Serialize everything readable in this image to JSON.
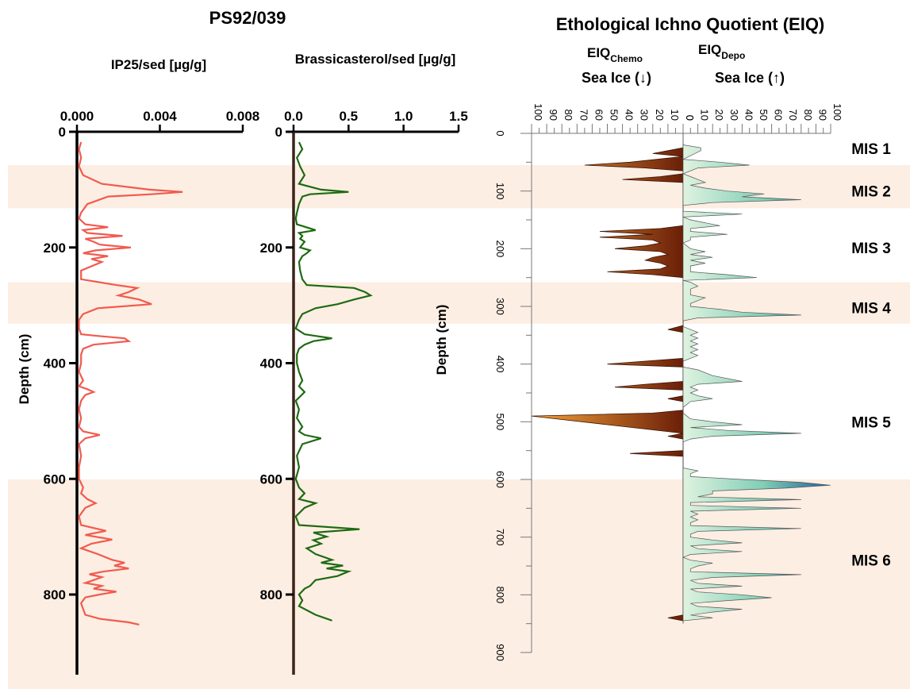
{
  "figure": {
    "core_title": "PS92/039",
    "eiq_title": "Ethological Ichno Quotient (EIQ)",
    "depth_label": "Depth (cm)",
    "colors": {
      "band": "#fdeee3",
      "ip25": "#f25a4e",
      "brassicasterol": "#1e6b12",
      "chemo_light": "#f6a23a",
      "chemo_dark": "#6a1f08",
      "depo_light": "#dff3e0",
      "depo_dark": "#1f5d9c"
    }
  },
  "mis_bands": [
    {
      "label": "MIS 1",
      "top": 0,
      "bottom": 55,
      "shaded": false
    },
    {
      "label": "MIS 2",
      "top": 55,
      "bottom": 130,
      "shaded": true
    },
    {
      "label": "MIS 3",
      "top": 130,
      "bottom": 258,
      "shaded": false
    },
    {
      "label": "MIS 4",
      "top": 258,
      "bottom": 330,
      "shaded": true
    },
    {
      "label": "MIS 5",
      "top": 330,
      "bottom": 600,
      "shaded": false
    },
    {
      "label": "MIS 6",
      "top": 600,
      "bottom": 900,
      "shaded": true
    }
  ],
  "chart_data": [
    {
      "type": "line",
      "title": "IP25/sed [µg/g]",
      "xlim": [
        0,
        0.008
      ],
      "xticks": [
        "0.000",
        "0.004",
        "0.008"
      ],
      "xtick_values": [
        0,
        0.004,
        0.008
      ],
      "ylim": [
        0,
        855
      ],
      "yticks": [
        "0",
        "200",
        "400",
        "600",
        "800"
      ],
      "ylabel": "Depth (cm)",
      "depth": [
        18,
        30,
        45,
        60,
        75,
        90,
        100,
        104,
        108,
        112,
        125,
        140,
        150,
        160,
        165,
        170,
        175,
        180,
        185,
        190,
        195,
        200,
        205,
        210,
        215,
        220,
        225,
        240,
        255,
        265,
        270,
        277,
        283,
        290,
        298,
        305,
        315,
        325,
        340,
        350,
        353,
        357,
        362,
        368,
        375,
        385,
        400,
        415,
        430,
        440,
        445,
        450,
        455,
        465,
        480,
        495,
        510,
        518,
        524,
        530,
        540,
        560,
        580,
        600,
        615,
        625,
        635,
        642,
        650,
        665,
        680,
        690,
        697,
        705,
        712,
        720,
        730,
        740,
        745,
        750,
        755,
        760,
        765,
        770,
        775,
        780,
        785,
        790,
        795,
        800,
        805,
        815,
        825,
        835,
        842,
        848,
        852
      ],
      "values": [
        0.0002,
        0.0001,
        0.0002,
        0.0001,
        0.0003,
        0.0012,
        0.0035,
        0.0051,
        0.0036,
        0.0015,
        0.0005,
        0.0002,
        0.0001,
        0.0004,
        0.0015,
        0.0003,
        0.0005,
        0.0022,
        0.0004,
        0.0008,
        0.0011,
        0.0026,
        0.0009,
        0.0003,
        0.0015,
        0.0007,
        0.0012,
        0.0002,
        0.0002,
        0.0019,
        0.0029,
        0.0025,
        0.002,
        0.003,
        0.0036,
        0.001,
        0.0003,
        0.0001,
        0.0001,
        0.0002,
        0.001,
        0.0023,
        0.0025,
        0.0008,
        0.0003,
        0.0002,
        0.0002,
        0.0001,
        0.0003,
        0.0001,
        0.0005,
        0.0008,
        0.0004,
        0.0002,
        0.0001,
        0.0002,
        0.0001,
        0.0003,
        0.0011,
        0.0004,
        0.0001,
        0.0002,
        0.0001,
        0.0001,
        0.0003,
        0.0002,
        0.0005,
        0.0009,
        0.0004,
        0.0001,
        0.0002,
        0.0014,
        0.0004,
        0.0017,
        0.0007,
        0.0002,
        0.001,
        0.0017,
        0.0023,
        0.0018,
        0.0025,
        0.0013,
        0.0006,
        0.0012,
        0.0008,
        0.0004,
        0.0012,
        0.0008,
        0.0019,
        0.0011,
        0.0004,
        0.0002,
        0.0003,
        0.0004,
        0.0011,
        0.0025,
        0.003
      ]
    },
    {
      "type": "line",
      "title": "Brassicasterol/sed [µg/g]",
      "xlim": [
        0,
        1.5
      ],
      "xticks": [
        "0.0",
        "0.5",
        "1.0",
        "1.5"
      ],
      "xtick_values": [
        0,
        0.5,
        1.0,
        1.5
      ],
      "ylim": [
        0,
        855
      ],
      "yticks": [
        "0",
        "200",
        "400",
        "600",
        "800"
      ],
      "depth": [
        18,
        30,
        45,
        60,
        75,
        90,
        100,
        104,
        108,
        112,
        125,
        140,
        150,
        160,
        170,
        175,
        180,
        185,
        190,
        195,
        200,
        205,
        210,
        215,
        225,
        240,
        255,
        265,
        270,
        277,
        283,
        290,
        298,
        305,
        315,
        325,
        340,
        350,
        353,
        357,
        362,
        368,
        375,
        385,
        400,
        415,
        430,
        440,
        450,
        465,
        480,
        495,
        510,
        518,
        524,
        530,
        540,
        560,
        580,
        600,
        615,
        625,
        635,
        642,
        650,
        665,
        680,
        687,
        693,
        700,
        706,
        712,
        720,
        730,
        740,
        745,
        750,
        755,
        760,
        768,
        775,
        785,
        790,
        800,
        810,
        820,
        835,
        845
      ],
      "values": [
        0.05,
        0.08,
        0.03,
        0.06,
        0.1,
        0.05,
        0.25,
        0.5,
        0.15,
        0.08,
        0.05,
        0.03,
        0.02,
        0.03,
        0.2,
        0.05,
        0.08,
        0.06,
        0.1,
        0.08,
        0.06,
        0.15,
        0.12,
        0.08,
        0.05,
        0.06,
        0.08,
        0.12,
        0.55,
        0.65,
        0.7,
        0.55,
        0.4,
        0.2,
        0.08,
        0.05,
        0.02,
        0.1,
        0.2,
        0.35,
        0.18,
        0.1,
        0.05,
        0.03,
        0.03,
        0.05,
        0.08,
        0.05,
        0.1,
        0.02,
        0.05,
        0.03,
        0.08,
        0.05,
        0.1,
        0.25,
        0.08,
        0.03,
        0.05,
        0.02,
        0.05,
        0.1,
        0.05,
        0.2,
        0.1,
        0.02,
        0.05,
        0.6,
        0.18,
        0.3,
        0.18,
        0.25,
        0.12,
        0.2,
        0.35,
        0.25,
        0.45,
        0.3,
        0.5,
        0.4,
        0.2,
        0.15,
        0.1,
        0.05,
        0.08,
        0.05,
        0.2,
        0.35
      ]
    },
    {
      "type": "area",
      "title": "EIQ",
      "sub_chemo": "Chemo",
      "sub_depo": "Depo",
      "sealabel_chemo": "Sea Ice (↓)",
      "sealabel_depo": "Sea Ice (↑)",
      "ylabel": "Depth (cm)",
      "ylim": [
        0,
        900
      ],
      "yticks": [
        "0",
        "100",
        "200",
        "300",
        "400",
        "500",
        "600",
        "700",
        "800",
        "900"
      ],
      "chemo_ticks": [
        "100",
        "90",
        "80",
        "70",
        "60",
        "50",
        "40",
        "30",
        "20",
        "10",
        "0"
      ],
      "depo_ticks": [
        "0",
        "10",
        "20",
        "30",
        "40",
        "50",
        "60",
        "70",
        "80",
        "90",
        "100"
      ],
      "chemo": {
        "depth": [
          25,
          30,
          35,
          40,
          50,
          55,
          60,
          65,
          70,
          75,
          80,
          85,
          160,
          165,
          170,
          175,
          180,
          185,
          190,
          195,
          200,
          205,
          210,
          215,
          220,
          225,
          230,
          235,
          240,
          245,
          250,
          333,
          340,
          345,
          390,
          395,
          400,
          405,
          430,
          435,
          440,
          445,
          455,
          460,
          465,
          480,
          485,
          490,
          520,
          525,
          530,
          550,
          555,
          560,
          835,
          840,
          845
        ],
        "values": [
          0,
          10,
          20,
          0,
          35,
          65,
          25,
          0,
          0,
          15,
          40,
          0,
          0,
          15,
          55,
          20,
          55,
          20,
          15,
          25,
          45,
          15,
          10,
          20,
          25,
          15,
          10,
          15,
          50,
          20,
          0,
          0,
          10,
          0,
          0,
          25,
          50,
          0,
          0,
          25,
          45,
          0,
          0,
          10,
          0,
          0,
          20,
          100,
          0,
          10,
          0,
          0,
          35,
          0,
          0,
          10,
          0
        ]
      },
      "depo": {
        "depth": [
          20,
          25,
          30,
          45,
          50,
          55,
          60,
          70,
          75,
          80,
          85,
          90,
          95,
          100,
          105,
          110,
          115,
          120,
          125,
          135,
          140,
          145,
          150,
          160,
          165,
          170,
          175,
          180,
          185,
          190,
          200,
          205,
          210,
          215,
          220,
          225,
          230,
          240,
          245,
          250,
          255,
          258,
          265,
          270,
          275,
          280,
          285,
          290,
          295,
          300,
          305,
          310,
          315,
          320,
          325,
          335,
          340,
          345,
          350,
          355,
          360,
          365,
          370,
          375,
          380,
          385,
          395,
          405,
          410,
          420,
          425,
          430,
          435,
          440,
          445,
          450,
          455,
          460,
          465,
          475,
          485,
          495,
          500,
          505,
          510,
          515,
          520,
          525,
          530,
          535,
          540,
          550,
          560,
          580,
          585,
          590,
          595,
          600,
          605,
          610,
          615,
          620,
          625,
          630,
          635,
          640,
          645,
          650,
          655,
          660,
          665,
          670,
          675,
          680,
          685,
          690,
          695,
          700,
          705,
          710,
          715,
          720,
          725,
          730,
          735,
          740,
          745,
          750,
          755,
          760,
          765,
          770,
          775,
          780,
          785,
          790,
          795,
          800,
          805,
          810,
          815,
          820,
          825,
          830,
          835,
          840,
          845
        ],
        "values": [
          0,
          12,
          12,
          0,
          25,
          45,
          10,
          0,
          5,
          10,
          15,
          5,
          15,
          30,
          55,
          40,
          80,
          20,
          0,
          0,
          40,
          0,
          5,
          25,
          5,
          5,
          30,
          5,
          5,
          0,
          5,
          15,
          5,
          20,
          5,
          15,
          5,
          5,
          30,
          50,
          0,
          5,
          10,
          5,
          5,
          5,
          15,
          10,
          5,
          5,
          25,
          40,
          80,
          10,
          0,
          0,
          5,
          10,
          5,
          10,
          5,
          10,
          5,
          10,
          5,
          10,
          0,
          0,
          10,
          20,
          30,
          40,
          10,
          5,
          10,
          5,
          10,
          20,
          5,
          0,
          0,
          5,
          20,
          40,
          5,
          30,
          80,
          20,
          5,
          0,
          0,
          0,
          0,
          0,
          10,
          5,
          5,
          40,
          80,
          100,
          70,
          20,
          20,
          10,
          80,
          5,
          5,
          80,
          5,
          10,
          5,
          10,
          5,
          5,
          80,
          10,
          5,
          5,
          20,
          40,
          5,
          10,
          40,
          5,
          0,
          5,
          20,
          10,
          5,
          5,
          80,
          20,
          5,
          10,
          40,
          5,
          10,
          40,
          60,
          30,
          5,
          10,
          40,
          20,
          5,
          20,
          0
        ]
      }
    }
  ]
}
